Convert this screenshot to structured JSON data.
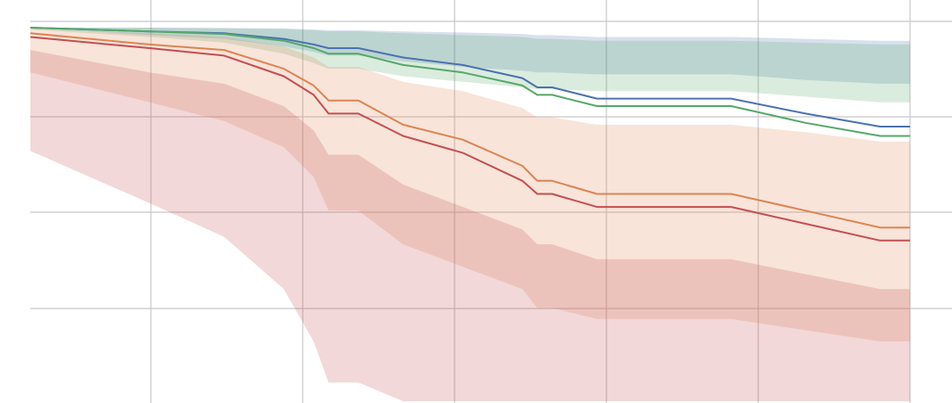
{
  "chart_data": {
    "type": "line",
    "title": "",
    "xlabel": "",
    "ylabel": "",
    "xlim": [
      0,
      29
    ],
    "ylim": [
      0,
      1.05
    ],
    "grid": true,
    "x": [
      0,
      2,
      4,
      6.5,
      8.5,
      9.5,
      10,
      11,
      12.5,
      14.5,
      16.5,
      17,
      17.5,
      19,
      23.5,
      26,
      28.5,
      29.5
    ],
    "series": [
      {
        "color": "#4c72b0",
        "values": [
          1.0,
          0.995,
          0.99,
          0.985,
          0.97,
          0.955,
          0.945,
          0.945,
          0.92,
          0.9,
          0.865,
          0.84,
          0.84,
          0.81,
          0.81,
          0.77,
          0.735,
          0.735
        ],
        "band_upper": [
          1.0,
          1.0,
          1.0,
          0.999,
          0.998,
          0.995,
          0.993,
          0.993,
          0.99,
          0.987,
          0.983,
          0.98,
          0.98,
          0.975,
          0.975,
          0.97,
          0.965,
          0.965
        ],
        "band_lower": [
          0.998,
          0.99,
          0.98,
          0.97,
          0.95,
          0.935,
          0.925,
          0.925,
          0.91,
          0.895,
          0.885,
          0.88,
          0.88,
          0.875,
          0.875,
          0.86,
          0.85,
          0.85
        ]
      },
      {
        "color": "#55a868",
        "values": [
          1.0,
          0.995,
          0.99,
          0.983,
          0.965,
          0.945,
          0.93,
          0.93,
          0.9,
          0.88,
          0.845,
          0.82,
          0.82,
          0.79,
          0.79,
          0.745,
          0.71,
          0.71
        ],
        "band_upper": [
          1.0,
          1.0,
          1.0,
          0.998,
          0.996,
          0.993,
          0.99,
          0.99,
          0.985,
          0.98,
          0.975,
          0.97,
          0.97,
          0.965,
          0.965,
          0.96,
          0.955,
          0.955
        ],
        "band_lower": [
          0.995,
          0.985,
          0.975,
          0.96,
          0.93,
          0.905,
          0.89,
          0.89,
          0.87,
          0.855,
          0.84,
          0.835,
          0.835,
          0.83,
          0.83,
          0.815,
          0.8,
          0.8
        ]
      },
      {
        "color": "#dd8452",
        "values": [
          0.985,
          0.97,
          0.955,
          0.94,
          0.89,
          0.845,
          0.805,
          0.805,
          0.74,
          0.7,
          0.63,
          0.59,
          0.59,
          0.555,
          0.555,
          0.51,
          0.465,
          0.465
        ],
        "band_upper": [
          0.998,
          0.99,
          0.985,
          0.975,
          0.95,
          0.92,
          0.895,
          0.895,
          0.855,
          0.83,
          0.785,
          0.76,
          0.76,
          0.74,
          0.74,
          0.72,
          0.695,
          0.695
        ],
        "band_lower": [
          0.88,
          0.84,
          0.8,
          0.75,
          0.68,
          0.6,
          0.51,
          0.51,
          0.42,
          0.36,
          0.3,
          0.25,
          0.25,
          0.22,
          0.22,
          0.19,
          0.16,
          0.16
        ]
      },
      {
        "color": "#c44e52",
        "values": [
          0.975,
          0.96,
          0.945,
          0.925,
          0.87,
          0.82,
          0.77,
          0.77,
          0.71,
          0.665,
          0.59,
          0.555,
          0.555,
          0.52,
          0.52,
          0.475,
          0.43,
          0.43
        ],
        "band_upper": [
          0.94,
          0.91,
          0.88,
          0.85,
          0.79,
          0.725,
          0.66,
          0.66,
          0.58,
          0.52,
          0.46,
          0.42,
          0.42,
          0.38,
          0.38,
          0.34,
          0.3,
          0.3
        ],
        "band_lower": [
          0.67,
          0.6,
          0.53,
          0.44,
          0.3,
          0.16,
          0.05,
          0.05,
          0.0,
          0.0,
          0.0,
          0.0,
          0.0,
          0.0,
          0.0,
          0.0,
          0.0,
          0.0
        ]
      }
    ]
  }
}
